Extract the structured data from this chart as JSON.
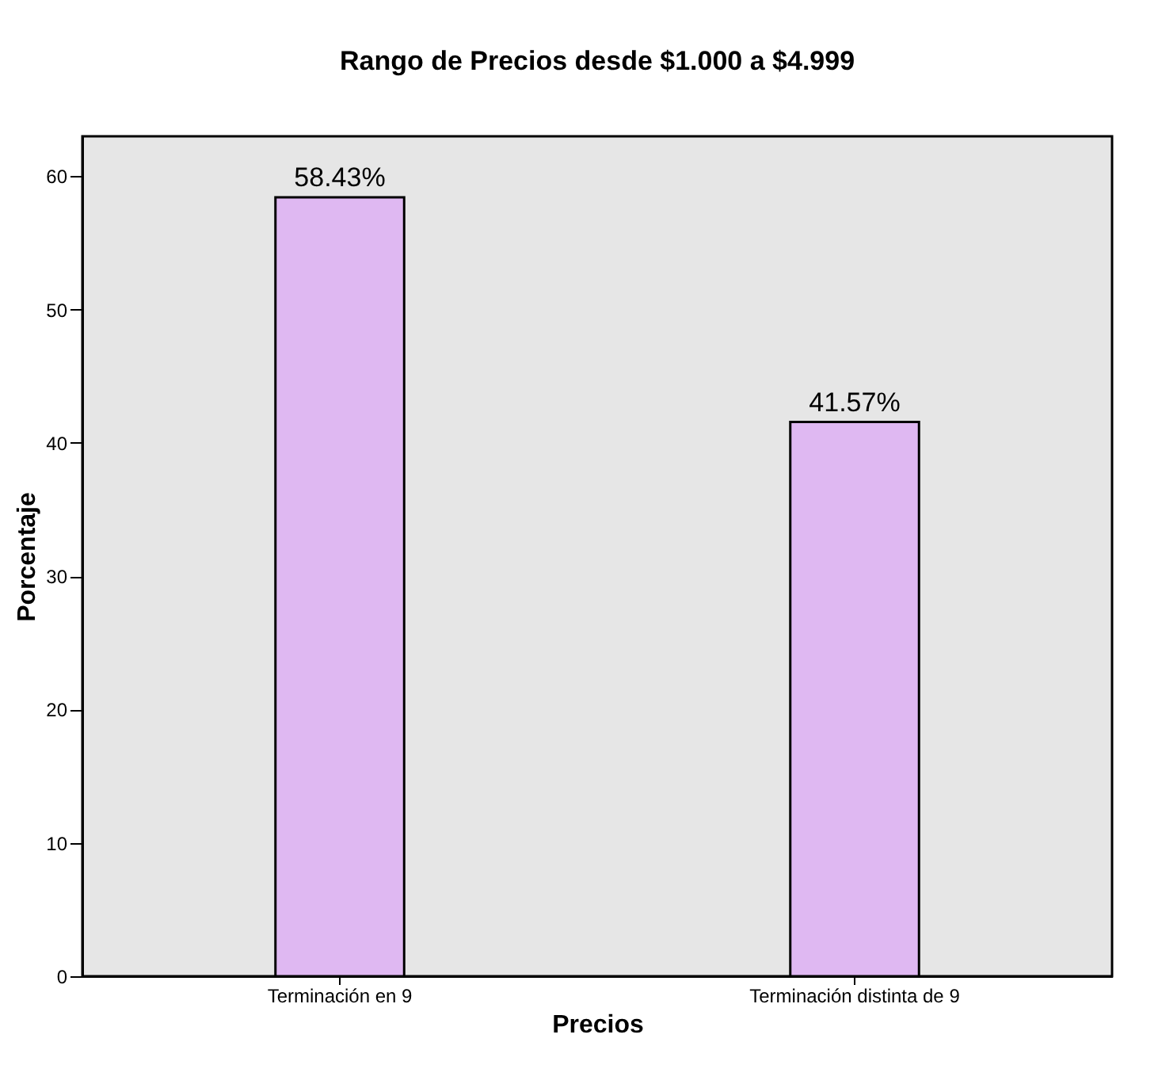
{
  "chart_data": {
    "type": "bar",
    "title": "Rango de Precios desde $1.000 a $4.999",
    "xlabel": "Precios",
    "ylabel": "Porcentaje",
    "categories": [
      "Terminación en 9",
      "Terminación distinta de 9"
    ],
    "values": [
      58.43,
      41.57
    ],
    "value_labels": [
      "58.43%",
      "41.57%"
    ],
    "color": "#dfb8f2",
    "ylim": [
      0,
      63
    ],
    "yticks": [
      0,
      10,
      20,
      30,
      40,
      50,
      60
    ],
    "grid": false
  }
}
